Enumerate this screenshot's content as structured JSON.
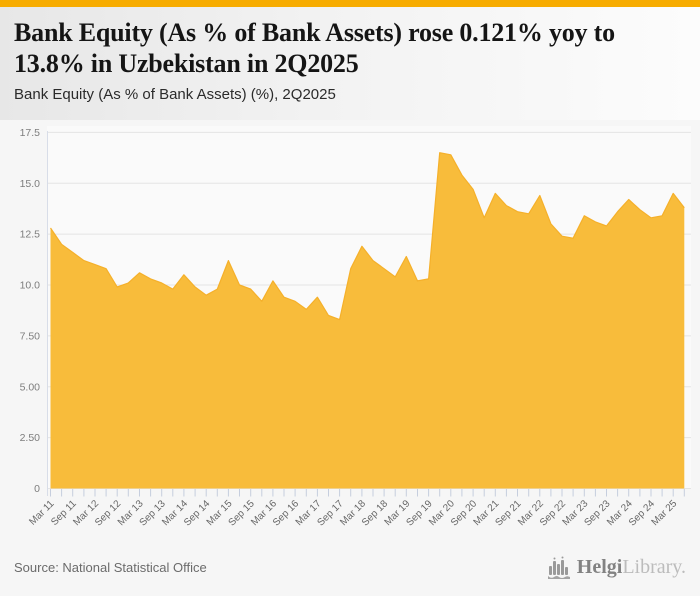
{
  "header": {
    "title": "Bank Equity (As % of Bank Assets) rose 0.121% yoy to 13.8% in Uzbekistan in 2Q2025",
    "subtitle": "Bank Equity (As % of Bank Assets) (%), 2Q2025"
  },
  "footer": {
    "source": "Source: National Statistical Office",
    "brand_primary": "Helgi",
    "brand_secondary": "Library.",
    "brand_icon": "helgi-bars-logo-icon"
  },
  "colors": {
    "accent_topbar": "#f7ac00",
    "area_fill": "#f8bc3b",
    "area_stroke": "#f5b02a",
    "gridline": "#e4e4e4",
    "axis_tick": "#c6cede",
    "axis_spine": "#d8dde8",
    "y_label": "#7d7d7d",
    "x_label": "#666666",
    "plot_bg": "#fafafa"
  },
  "chart_data": {
    "type": "area",
    "title": "Bank Equity (As % of Bank Assets) rose 0.121% yoy to 13.8% in Uzbekistan in 2Q2025",
    "subtitle": "Bank Equity (As % of Bank Assets) (%), 2Q2025",
    "xlabel": "",
    "ylabel": "",
    "ylim": [
      0,
      17.9
    ],
    "grid": true,
    "legend": false,
    "yticks": [
      0,
      2.5,
      5,
      7.5,
      10,
      12.5,
      15,
      17.5
    ],
    "ytick_labels": [
      "0",
      "2.50",
      "5.00",
      "7.50",
      "10.0",
      "12.5",
      "15.0",
      "17.5"
    ],
    "x_labels_every": 2,
    "categories": [
      "Mar 11",
      "Jun 11",
      "Sep 11",
      "Dec 11",
      "Mar 12",
      "Jun 12",
      "Sep 12",
      "Dec 12",
      "Mar 13",
      "Jun 13",
      "Sep 13",
      "Dec 13",
      "Mar 14",
      "Jun 14",
      "Sep 14",
      "Dec 14",
      "Mar 15",
      "Jun 15",
      "Sep 15",
      "Dec 15",
      "Mar 16",
      "Jun 16",
      "Sep 16",
      "Dec 16",
      "Mar 17",
      "Jun 17",
      "Sep 17",
      "Dec 17",
      "Mar 18",
      "Jun 18",
      "Sep 18",
      "Dec 18",
      "Mar 19",
      "Jun 19",
      "Sep 19",
      "Dec 19",
      "Mar 20",
      "Jun 20",
      "Sep 20",
      "Dec 20",
      "Mar 21",
      "Jun 21",
      "Sep 21",
      "Dec 21",
      "Mar 22",
      "Jun 22",
      "Sep 22",
      "Dec 22",
      "Mar 23",
      "Jun 23",
      "Sep 23",
      "Dec 23",
      "Mar 24",
      "Jun 24",
      "Sep 24",
      "Dec 24",
      "Mar 25",
      "Jun 25"
    ],
    "values": [
      12.8,
      12.0,
      11.6,
      11.2,
      11.0,
      10.8,
      9.9,
      10.1,
      10.6,
      10.3,
      10.1,
      9.8,
      10.5,
      9.9,
      9.5,
      9.8,
      11.2,
      10.0,
      9.8,
      9.2,
      10.2,
      9.4,
      9.2,
      8.8,
      9.4,
      8.5,
      8.3,
      10.8,
      11.9,
      11.2,
      10.8,
      10.4,
      11.4,
      10.2,
      10.3,
      16.5,
      16.4,
      15.4,
      14.7,
      13.3,
      14.5,
      13.9,
      13.6,
      13.5,
      14.4,
      13.0,
      12.4,
      12.3,
      13.4,
      13.1,
      12.9,
      13.6,
      14.2,
      13.7,
      13.3,
      13.4,
      14.5,
      13.8
    ]
  }
}
